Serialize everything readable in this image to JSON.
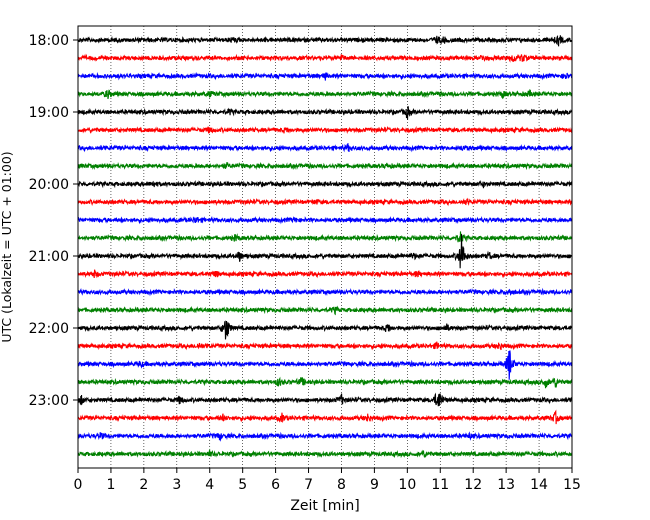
{
  "chart_data": {
    "type": "line",
    "title": "",
    "xlabel": "Zeit  [min]",
    "ylabel": "UTC (Lokalzeit = UTC + 01:00)",
    "xlim": [
      0,
      15
    ],
    "x_ticks": [
      "0",
      "1",
      "2",
      "3",
      "4",
      "5",
      "6",
      "7",
      "8",
      "9",
      "10",
      "11",
      "12",
      "13",
      "14",
      "15"
    ],
    "y_ticks": [
      "18:00",
      "19:00",
      "20:00",
      "21:00",
      "22:00",
      "23:00"
    ],
    "grid": {
      "vertical": true,
      "style": "dotted"
    },
    "row_interval_min": 15,
    "row_colors": [
      "#000000",
      "#ff0000",
      "#0000ff",
      "#008000"
    ],
    "rows": [
      {
        "start": "18:00",
        "events": [
          [
            4.7,
            0.25
          ],
          [
            10.9,
            0.3
          ],
          [
            11.1,
            0.3
          ],
          [
            14.6,
            0.55
          ]
        ]
      },
      {
        "start": "18:15",
        "events": [
          [
            8.0,
            0.3
          ],
          [
            12.3,
            0.3
          ],
          [
            13.2,
            0.4
          ],
          [
            13.5,
            0.4
          ]
        ]
      },
      {
        "start": "18:30",
        "events": [
          [
            7.5,
            0.3
          ],
          [
            14.8,
            0.25
          ]
        ]
      },
      {
        "start": "18:45",
        "events": [
          [
            0.9,
            0.45
          ],
          [
            4.0,
            0.2
          ],
          [
            12.9,
            0.3
          ],
          [
            13.7,
            0.25
          ]
        ]
      },
      {
        "start": "19:00",
        "events": [
          [
            10.0,
            0.6
          ],
          [
            4.6,
            0.2
          ]
        ]
      },
      {
        "start": "19:15",
        "events": [
          [
            4.0,
            0.3
          ],
          [
            6.3,
            0.2
          ]
        ]
      },
      {
        "start": "19:30",
        "events": [
          [
            8.2,
            0.3
          ],
          [
            11.7,
            0.2
          ]
        ]
      },
      {
        "start": "19:45",
        "events": [
          [
            4.5,
            0.25
          ],
          [
            9.4,
            0.2
          ]
        ]
      },
      {
        "start": "20:00",
        "events": [
          [
            2.3,
            0.25
          ],
          [
            12.3,
            0.25
          ]
        ]
      },
      {
        "start": "20:15",
        "events": [
          [
            7.2,
            0.2
          ],
          [
            11.8,
            0.2
          ]
        ]
      },
      {
        "start": "20:30",
        "events": [
          [
            3.6,
            0.35
          ],
          [
            6.6,
            0.2
          ]
        ]
      },
      {
        "start": "20:45",
        "events": [
          [
            4.8,
            0.3
          ],
          [
            11.6,
            0.6
          ]
        ]
      },
      {
        "start": "21:00",
        "events": [
          [
            4.9,
            0.5
          ],
          [
            11.65,
            2.3
          ],
          [
            12.5,
            0.3
          ],
          [
            10.2,
            0.25
          ]
        ]
      },
      {
        "start": "21:15",
        "events": [
          [
            0.5,
            0.3
          ],
          [
            4.2,
            0.3
          ],
          [
            10.3,
            0.25
          ]
        ]
      },
      {
        "start": "21:30",
        "events": [
          [
            13.1,
            0.3
          ]
        ]
      },
      {
        "start": "21:45",
        "events": [
          [
            7.8,
            0.25
          ]
        ]
      },
      {
        "start": "22:00",
        "events": [
          [
            4.5,
            1.6
          ],
          [
            9.4,
            0.4
          ],
          [
            11.2,
            0.3
          ]
        ]
      },
      {
        "start": "22:15",
        "events": [
          [
            3.7,
            0.3
          ],
          [
            10.9,
            0.3
          ],
          [
            12.8,
            0.4
          ]
        ]
      },
      {
        "start": "22:30",
        "events": [
          [
            13.1,
            1.8
          ],
          [
            1.9,
            0.25
          ]
        ]
      },
      {
        "start": "22:45",
        "events": [
          [
            6.1,
            0.4
          ],
          [
            6.8,
            0.4
          ],
          [
            14.2,
            0.5
          ],
          [
            14.5,
            0.5
          ]
        ]
      },
      {
        "start": "23:00",
        "events": [
          [
            0.1,
            0.4
          ],
          [
            3.1,
            0.4
          ],
          [
            8.0,
            0.5
          ],
          [
            11.0,
            0.8
          ],
          [
            10.9,
            0.7
          ]
        ]
      },
      {
        "start": "23:15",
        "events": [
          [
            4.4,
            0.3
          ],
          [
            6.2,
            0.4
          ],
          [
            8.8,
            0.4
          ],
          [
            14.5,
            0.6
          ]
        ]
      },
      {
        "start": "23:30",
        "events": [
          [
            0.7,
            0.3
          ],
          [
            4.3,
            0.3
          ],
          [
            11.9,
            0.2
          ]
        ]
      },
      {
        "start": "23:45",
        "events": [
          [
            10.5,
            0.3
          ],
          [
            4.0,
            0.2
          ]
        ]
      }
    ]
  }
}
